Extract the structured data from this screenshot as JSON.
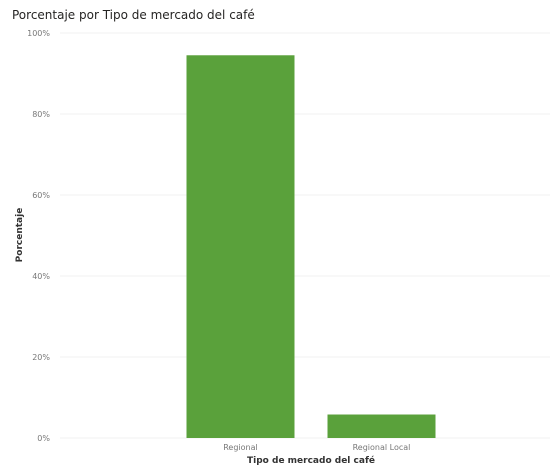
{
  "chart_data": {
    "type": "bar",
    "title": "Porcentaje por Tipo de mercado del café",
    "xlabel": "Tipo de mercado del café",
    "ylabel": "Porcentaje",
    "categories": [
      "Regional",
      "Regional Local"
    ],
    "values": [
      94.5,
      5.8
    ],
    "ylim": [
      0,
      100
    ],
    "yticks": [
      0,
      20,
      40,
      60,
      80,
      100
    ],
    "ytick_labels": [
      "0%",
      "20%",
      "40%",
      "60%",
      "80%",
      "100%"
    ],
    "grid": true,
    "legend": "none",
    "colors": {
      "bar": "#5aa13b",
      "grid": "#f2f2f2",
      "tick_text": "#777777",
      "axis_title": "#333333",
      "title": "#252423"
    }
  }
}
